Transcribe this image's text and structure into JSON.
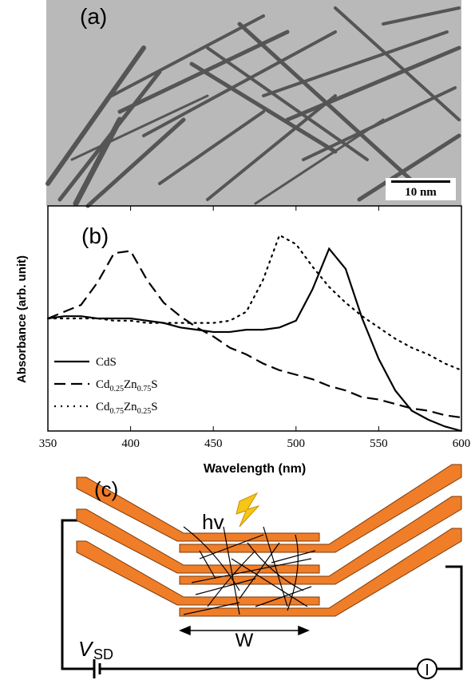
{
  "panel_a": {
    "label": "(a)",
    "scale_bar": "10 nm"
  },
  "chart_data": {
    "type": "line",
    "label": "(b)",
    "x_label": "Wavelength (nm)",
    "y_label": "Absorbance (arb. unit)",
    "x": [
      350,
      360,
      370,
      380,
      390,
      400,
      410,
      420,
      430,
      440,
      450,
      460,
      470,
      480,
      490,
      500,
      510,
      520,
      530,
      540,
      550,
      560,
      570,
      580,
      590,
      600
    ],
    "series": [
      {
        "name": "CdS",
        "color": "#000000",
        "dash": "solid",
        "values": [
          0.5,
          0.51,
          0.51,
          0.5,
          0.5,
          0.5,
          0.49,
          0.48,
          0.46,
          0.45,
          0.44,
          0.44,
          0.45,
          0.45,
          0.46,
          0.49,
          0.63,
          0.81,
          0.72,
          0.5,
          0.32,
          0.18,
          0.09,
          0.05,
          0.02,
          0.0
        ]
      },
      {
        "name": "Cd0.25Zn0.75S",
        "color": "#000000",
        "dash": "dashed",
        "values": [
          0.5,
          0.53,
          0.56,
          0.66,
          0.79,
          0.8,
          0.67,
          0.57,
          0.51,
          0.46,
          0.42,
          0.37,
          0.34,
          0.3,
          0.27,
          0.25,
          0.23,
          0.2,
          0.18,
          0.15,
          0.14,
          0.12,
          0.1,
          0.09,
          0.07,
          0.06
        ]
      },
      {
        "name": "Cd0.75Zn0.25S",
        "color": "#000000",
        "dash": "dotted",
        "values": [
          0.5,
          0.5,
          0.5,
          0.5,
          0.49,
          0.49,
          0.48,
          0.48,
          0.48,
          0.48,
          0.48,
          0.49,
          0.53,
          0.67,
          0.87,
          0.83,
          0.73,
          0.64,
          0.57,
          0.51,
          0.46,
          0.41,
          0.37,
          0.34,
          0.3,
          0.27
        ]
      }
    ],
    "xlim": [
      350,
      600
    ],
    "xticks": [
      350,
      400,
      450,
      500,
      550,
      600
    ],
    "ylim": [
      0,
      1
    ],
    "legend": "lower left"
  },
  "panel_c": {
    "label": "(c)",
    "light": "hv",
    "voltage": "V",
    "voltage_sub": "SD",
    "width": "W",
    "current": "I"
  }
}
